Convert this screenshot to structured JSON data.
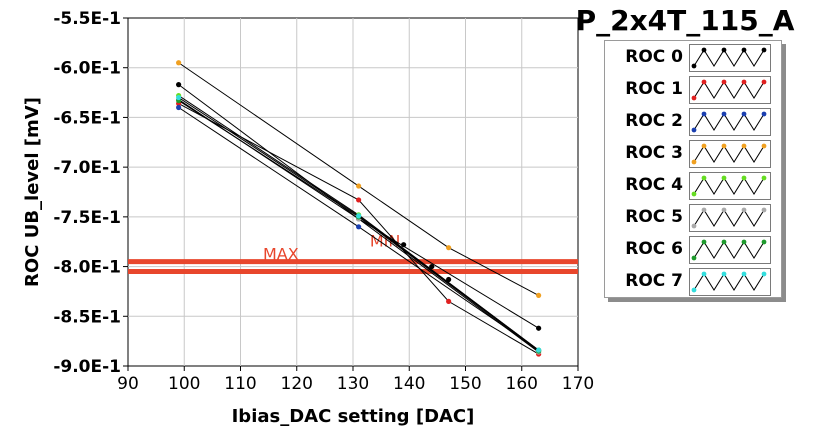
{
  "chart_data": {
    "type": "line",
    "title": "P_2x4T_115_A",
    "xlabel": "Ibias_DAC setting [DAC]",
    "ylabel": "ROC UB_level [mV]",
    "xlim": [
      90,
      170
    ],
    "ylim": [
      -0.9,
      -0.55
    ],
    "xticks": [
      "90",
      "100",
      "110",
      "120",
      "130",
      "140",
      "150",
      "160",
      "170"
    ],
    "yticks": [
      "-5.5E-1",
      "-6.0E-1",
      "-6.5E-1",
      "-7.0E-1",
      "-7.5E-1",
      "-8.0E-1",
      "-8.5E-1",
      "-9.0E-1"
    ],
    "grid": true,
    "legend_position": "right",
    "reference_lines": [
      {
        "label": "MAX",
        "y": -0.795,
        "color": "#e8462c"
      },
      {
        "label": "MIN",
        "y": -0.805,
        "color": "#e8462c"
      }
    ],
    "series": [
      {
        "name": "ROC 0",
        "color": "#000000",
        "x": [
          99,
          131,
          163
        ],
        "y": [
          -0.617,
          -0.752,
          -0.862
        ]
      },
      {
        "name": "ROC 1",
        "color": "#e02020",
        "x": [
          99,
          131,
          147,
          163
        ],
        "y": [
          -0.636,
          -0.733,
          -0.835,
          -0.888
        ]
      },
      {
        "name": "ROC 2",
        "color": "#1a3fb0",
        "x": [
          99,
          131,
          163
        ],
        "y": [
          -0.64,
          -0.76,
          -0.884
        ]
      },
      {
        "name": "ROC 3",
        "color": "#f0a020",
        "x": [
          99,
          131,
          147,
          163
        ],
        "y": [
          -0.595,
          -0.719,
          -0.781,
          -0.829
        ]
      },
      {
        "name": "ROC 4",
        "color": "#66dd22",
        "x": [
          99,
          131,
          163
        ],
        "y": [
          -0.628,
          -0.748,
          -0.884
        ]
      },
      {
        "name": "ROC 5",
        "color": "#aaaaaa",
        "x": [
          99,
          131,
          163
        ],
        "y": [
          -0.632,
          -0.752,
          -0.886
        ]
      },
      {
        "name": "ROC 6",
        "color": "#1e9a2c",
        "x": [
          99,
          131,
          163
        ],
        "y": [
          -0.633,
          -0.75,
          -0.885
        ]
      },
      {
        "name": "ROC 7",
        "color": "#33dddd",
        "x": [
          99,
          131,
          163
        ],
        "y": [
          -0.63,
          -0.749,
          -0.884
        ]
      }
    ],
    "extra_points": [
      {
        "series": 0,
        "x": 139,
        "y": -0.778
      },
      {
        "series": 0,
        "x": 147,
        "y": -0.813
      },
      {
        "series": 0,
        "x": 144,
        "y": -0.8
      }
    ]
  }
}
